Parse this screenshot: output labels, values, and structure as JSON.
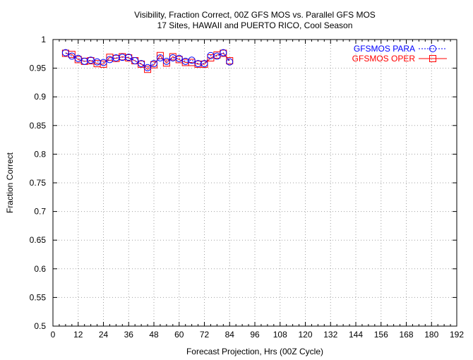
{
  "chart_data": {
    "type": "line",
    "title": "Visibility, Fraction Correct, 00Z GFS MOS vs. Parallel GFS MOS",
    "subtitle": "17 Sites, HAWAII and PUERTO RICO, Cool Season",
    "xlabel": "Forecast Projection, Hrs (00Z Cycle)",
    "ylabel": "Fraction Correct",
    "xlim": [
      0,
      192
    ],
    "ylim": [
      0.5,
      1.0
    ],
    "x_ticks": [
      0,
      12,
      24,
      36,
      48,
      60,
      72,
      84,
      96,
      108,
      120,
      132,
      144,
      156,
      168,
      180,
      192
    ],
    "y_ticks": [
      0.5,
      0.55,
      0.6,
      0.65,
      0.7,
      0.75,
      0.8,
      0.85,
      0.9,
      0.95,
      1.0
    ],
    "x_minor_ticks_per_major": 4,
    "grid": true,
    "legend_position": "top-right",
    "x": [
      6,
      9,
      12,
      15,
      18,
      21,
      24,
      27,
      30,
      33,
      36,
      39,
      42,
      45,
      48,
      51,
      54,
      57,
      60,
      63,
      66,
      69,
      72,
      75,
      78,
      81,
      84
    ],
    "series": [
      {
        "name": "GFSMOS PARA",
        "color": "#0000ff",
        "marker": "circle",
        "line_style": "dotted",
        "values": [
          0.977,
          0.971,
          0.967,
          0.962,
          0.964,
          0.961,
          0.96,
          0.965,
          0.968,
          0.969,
          0.969,
          0.963,
          0.958,
          0.951,
          0.958,
          0.968,
          0.962,
          0.968,
          0.967,
          0.962,
          0.964,
          0.958,
          0.958,
          0.972,
          0.971,
          0.977,
          0.961
        ]
      },
      {
        "name": "GFSMOS OPER",
        "color": "#ff0000",
        "marker": "square",
        "line_style": "solid",
        "values": [
          0.976,
          0.974,
          0.965,
          0.962,
          0.963,
          0.958,
          0.957,
          0.969,
          0.967,
          0.97,
          0.968,
          0.963,
          0.957,
          0.948,
          0.956,
          0.972,
          0.959,
          0.97,
          0.965,
          0.96,
          0.96,
          0.957,
          0.957,
          0.968,
          0.973,
          0.976,
          0.963
        ]
      }
    ]
  }
}
